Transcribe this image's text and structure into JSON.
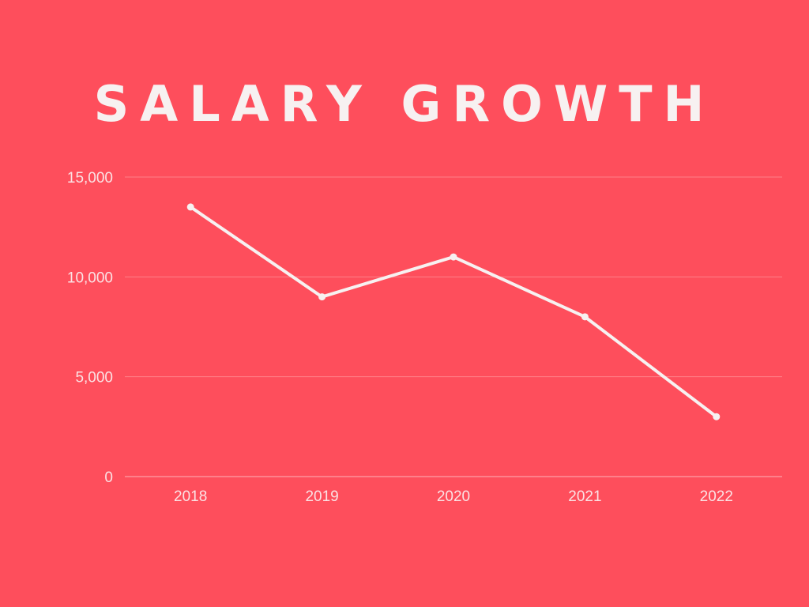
{
  "chart_data": {
    "type": "line",
    "title": "SALARY GROWTH",
    "xlabel": "",
    "ylabel": "",
    "categories": [
      "2018",
      "2019",
      "2020",
      "2021",
      "2022"
    ],
    "series": [
      {
        "values": [
          13500,
          9000,
          11000,
          8000,
          3000
        ]
      }
    ],
    "ylim": [
      0,
      15000
    ],
    "yticks": [
      0,
      5000,
      10000,
      15000
    ],
    "ytick_labels": [
      "0",
      "5,000",
      "10,000",
      "15,000"
    ],
    "grid": true,
    "legend": "none",
    "colors": {
      "background": "#fe4e5c",
      "line": "#f7f1f1",
      "grid": "#ff8088",
      "axis": "#ffb3b8",
      "text": "#fbe2e4"
    }
  }
}
